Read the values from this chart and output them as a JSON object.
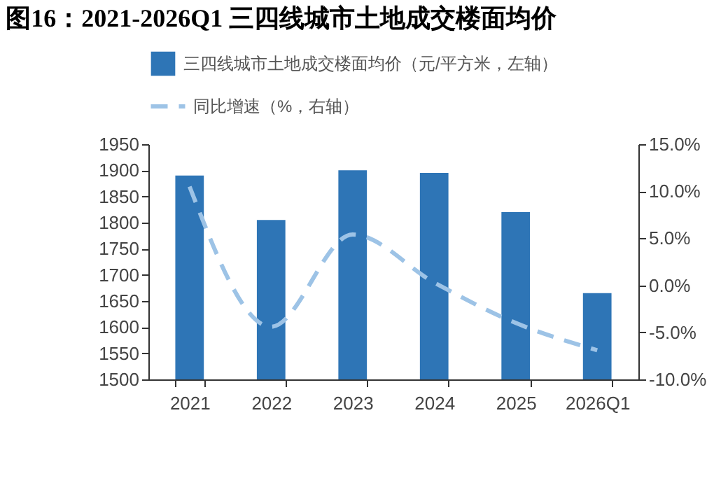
{
  "chart_data": {
    "type": "bar",
    "title": "图16：2021-2026Q1 三四线城市土地成交楼面均价",
    "categories": [
      "2021",
      "2022",
      "2023",
      "2024",
      "2025",
      "2026Q1"
    ],
    "series": [
      {
        "name": "三四线城市土地成交楼面均价（元/平方米，左轴）",
        "color": "#2e75b6",
        "values": [
          1890,
          1805,
          1900,
          1895,
          1820,
          1665
        ]
      },
      {
        "name": "同比增速（%，右轴）",
        "type": "line",
        "axis": "y2",
        "color": "#9dc3e6",
        "line_style": "dashed",
        "values": [
          10.5,
          -4.4,
          5.4,
          0.3,
          -4.0,
          -6.9
        ]
      }
    ],
    "ylim": [
      1500,
      1950
    ],
    "yticks": [
      1500,
      1550,
      1600,
      1650,
      1700,
      1750,
      1800,
      1850,
      1900,
      1950
    ],
    "y2lim": [
      -10,
      15
    ],
    "y2ticks": [
      {
        "value": -10,
        "label": "-10.0%"
      },
      {
        "value": -5,
        "label": "-5.0%"
      },
      {
        "value": 0,
        "label": "0.0%"
      },
      {
        "value": 5,
        "label": "5.0%"
      },
      {
        "value": 10,
        "label": "10.0%"
      },
      {
        "value": 15,
        "label": "15.0%"
      }
    ],
    "grid": false,
    "legend": "top"
  }
}
